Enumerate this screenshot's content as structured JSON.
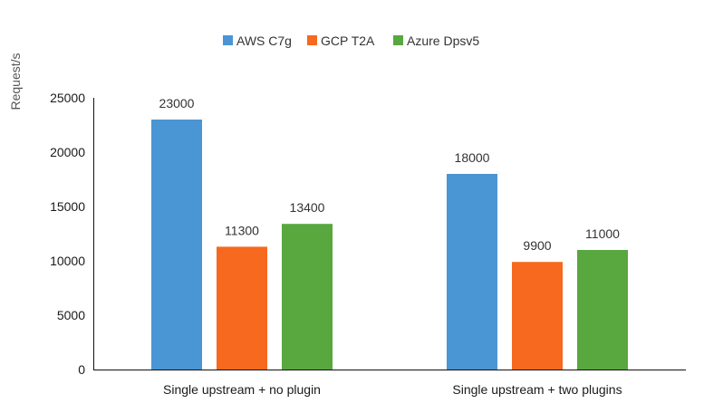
{
  "chart_data": {
    "type": "bar",
    "title": "",
    "xlabel": "",
    "ylabel": "Request/s",
    "categories": [
      "Single upstream + no plugin",
      "Single upstream + two plugins"
    ],
    "series": [
      {
        "name": "AWS C7g",
        "color": "#4A95D3",
        "values": [
          23000,
          18000
        ]
      },
      {
        "name": "GCP T2A",
        "color": "#F7691E",
        "values": [
          11300,
          9900
        ]
      },
      {
        "name": "Azure Dpsv5",
        "color": "#58A73F",
        "values": [
          13400,
          11000
        ]
      }
    ],
    "ylim": [
      0,
      25000
    ],
    "yticks": [
      0,
      5000,
      10000,
      15000,
      20000,
      25000
    ],
    "grid": false,
    "legend_position": "top-center",
    "data_labels": true
  }
}
